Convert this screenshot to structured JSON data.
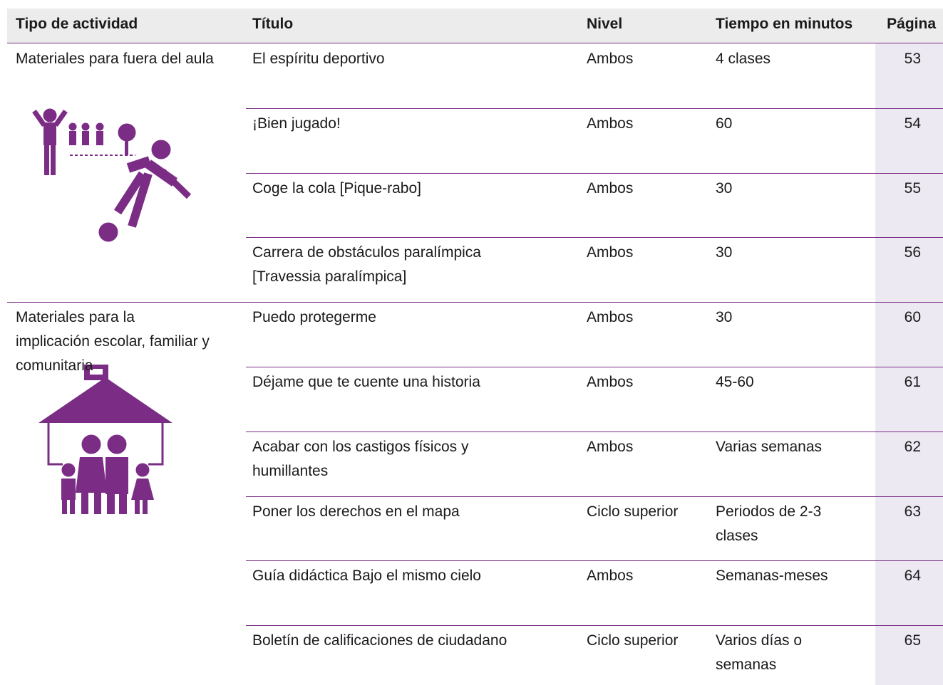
{
  "header": [
    "Tipo de actividad",
    "Título",
    "Nivel",
    "Tiempo en minutos",
    "Página"
  ],
  "groups": [
    {
      "label": "Materiales para fuera del aula",
      "rows": [
        {
          "title": "El espíritu deportivo",
          "level": "Ambos",
          "time": "4 clases",
          "page": 53
        },
        {
          "title": "¡Bien jugado!",
          "level": "Ambos",
          "time": "60",
          "page": 54
        },
        {
          "title": "Coge la cola [Pique-rabo]",
          "level": "Ambos",
          "time": "30",
          "page": 55
        },
        {
          "title": "Carrera de obstáculos paralímpica\n[Travessia paralímpica]",
          "level": "Ambos",
          "time": "30",
          "page": 56
        }
      ]
    },
    {
      "label": "Materiales para la\nimplicación escolar, familiar y\ncomunitaria",
      "rows": [
        {
          "title": "Puedo protegerme",
          "level": "Ambos",
          "time": "30",
          "page": 60
        },
        {
          "title": "Déjame que te cuente una historia",
          "level": "Ambos",
          "time": "45-60",
          "page": 61
        },
        {
          "title": "Acabar con los castigos físicos y\nhumillantes",
          "level": "Ambos",
          "time": "Varias semanas",
          "page": 62
        },
        {
          "title": "Poner los derechos en el mapa",
          "level": "Ciclo superior",
          "time": "Periodos de 2-3\nclases",
          "page": 63
        },
        {
          "title": "Guía didáctica Bajo el mismo cielo",
          "level": "Ambos",
          "time": "Semanas-meses",
          "page": 64
        },
        {
          "title": "Boletín de calificaciones de ciudadano",
          "level": "Ciclo superior",
          "time": "Varios días o\nsemanas",
          "page": 65
        }
      ]
    }
  ]
}
